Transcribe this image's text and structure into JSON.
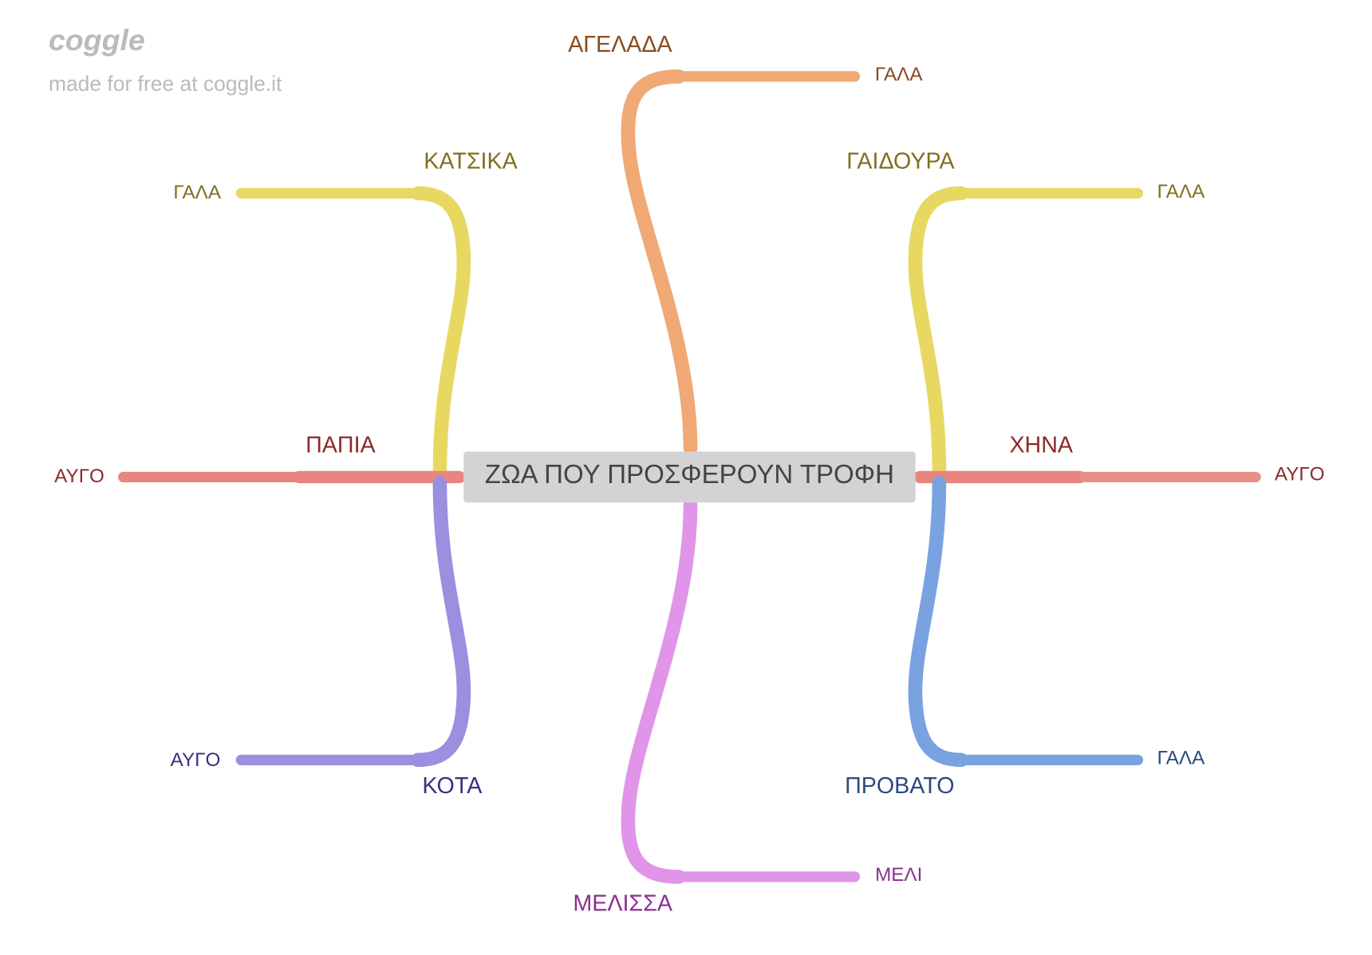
{
  "watermark": {
    "logo": "coggle",
    "text": "made for free at coggle.it"
  },
  "root": "ΖΩΑ ΠΟΥ ΠΡΟΣΦΕΡΟΥΝ ΤΡΟΦΗ",
  "nodes": [
    {
      "label": "ΑΓΕΛΑΔΑ",
      "children": [
        "ΓΑΛΑ"
      ]
    },
    {
      "label": "ΚΑΤΣΙΚΑ",
      "children": [
        "ΓΑΛΑ"
      ]
    },
    {
      "label": "ΓΑΙΔΟΥΡΑ",
      "children": [
        "ΓΑΛΑ"
      ]
    },
    {
      "label": "ΠΑΠΙΑ",
      "children": [
        "ΑΥΓΟ"
      ]
    },
    {
      "label": "ΧΗΝΑ",
      "children": [
        "ΑΥΓΟ"
      ]
    },
    {
      "label": "ΚΟΤΑ",
      "children": [
        "ΑΥΓΟ"
      ]
    },
    {
      "label": "ΠΡΟΒΑΤΟ",
      "children": [
        "ΓΑΛΑ"
      ]
    },
    {
      "label": "ΜΕΛΙΣΣΑ",
      "children": [
        "ΜΕΛΙ"
      ]
    }
  ]
}
